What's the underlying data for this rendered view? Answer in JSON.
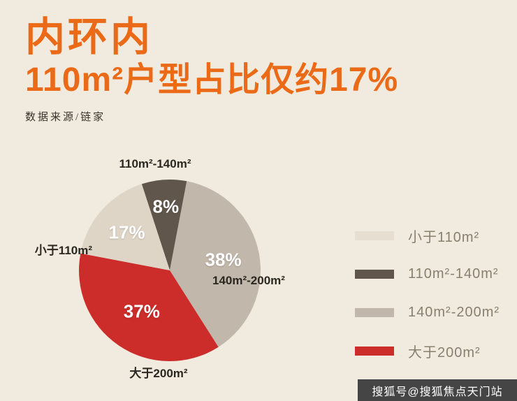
{
  "header": {
    "title_line1": "内环内",
    "title_line2": "110m²户型占比仅约17%",
    "source": "数据来源/链家"
  },
  "colors": {
    "accent_orange": "#ea6a17",
    "background": "#f0ebde",
    "slice_lt110": "#ded5c6",
    "slice_110_140": "#60564b",
    "slice_140_200": "#c2b7ab",
    "slice_gt200": "#cc2d2a",
    "label_text": "#2b2721",
    "legend_text": "#87806f",
    "watermark_bg": "#454545"
  },
  "chart_data": {
    "type": "pie",
    "title": "内环内 110m²户型占比仅约17%",
    "source": "数据来源/链家",
    "legend_position": "right",
    "start_angle_deg": -18,
    "slices": [
      {
        "label": "110m²-140m²",
        "value": 8,
        "color": "#60564b",
        "label_radius_frac": 0.7
      },
      {
        "label": "140m²-200m²",
        "value": 38,
        "color": "#c2b7ab",
        "label_radius_frac": 0.6
      },
      {
        "label": "大于200m²",
        "value": 37,
        "color": "#cc2d2a",
        "label_radius_frac": 0.55
      },
      {
        "label": "小于110m²",
        "value": 17,
        "color": "#ded5c6",
        "label_radius_frac": 0.63
      }
    ],
    "legend": [
      {
        "label": "小于110m²",
        "color": "#e6dfd1"
      },
      {
        "label": "110m²-140m²",
        "color": "#60564b"
      },
      {
        "label": "140m²-200m²",
        "color": "#c2b7ab"
      },
      {
        "label": "大于200m²",
        "color": "#cc2d2a"
      }
    ]
  },
  "watermark": "搜狐号@搜狐焦点天门站"
}
